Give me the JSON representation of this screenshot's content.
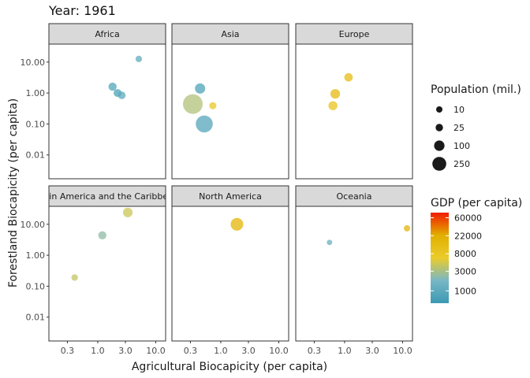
{
  "chart_data": {
    "type": "scatter",
    "title": "Year: 1961",
    "xlabel": "Agricultural Biocapicity (per capita)",
    "ylabel": "Forestland Biocapicity (per capita)",
    "x_scale": "log10",
    "y_scale": "log10",
    "xlim": [
      0.144,
      14.8
    ],
    "ylim": [
      0.0017,
      38
    ],
    "x_ticks": [
      "0.3",
      "1.0",
      "3.0",
      "10.0"
    ],
    "x_tick_values": [
      0.3,
      1,
      3,
      10
    ],
    "y_ticks": [
      "10.00",
      "1.00",
      "0.10",
      "0.01"
    ],
    "y_tick_values": [
      10,
      1,
      0.1,
      0.01
    ],
    "grid": false,
    "facets": [
      {
        "name": "Africa",
        "points": [
          {
            "x": 5.1,
            "y": 12.6,
            "pop": 12,
            "gdp": 1100
          },
          {
            "x": 1.8,
            "y": 1.6,
            "pop": 40,
            "gdp": 800
          },
          {
            "x": 2.2,
            "y": 1.0,
            "pop": 35,
            "gdp": 700
          },
          {
            "x": 2.6,
            "y": 0.84,
            "pop": 28,
            "gdp": 1000
          }
        ]
      },
      {
        "name": "Asia",
        "points": [
          {
            "x": 0.44,
            "y": 1.4,
            "pop": 95,
            "gdp": 750
          },
          {
            "x": 0.33,
            "y": 0.44,
            "pop": 650,
            "gdp": 3300
          },
          {
            "x": 0.73,
            "y": 0.39,
            "pop": 20,
            "gdp": 8000
          },
          {
            "x": 0.52,
            "y": 0.1,
            "pop": 440,
            "gdp": 850
          }
        ]
      },
      {
        "name": "Europe",
        "points": [
          {
            "x": 1.17,
            "y": 3.2,
            "pop": 45,
            "gdp": 13000
          },
          {
            "x": 0.69,
            "y": 0.94,
            "pop": 75,
            "gdp": 14000
          },
          {
            "x": 0.63,
            "y": 0.39,
            "pop": 60,
            "gdp": 9000
          }
        ]
      },
      {
        "name": "Latin America and the Caribbean",
        "points": [
          {
            "x": 3.3,
            "y": 24,
            "pop": 75,
            "gdp": 4500
          },
          {
            "x": 1.2,
            "y": 4.4,
            "pop": 38,
            "gdp": 2300
          },
          {
            "x": 0.4,
            "y": 0.19,
            "pop": 12,
            "gdp": 4000
          }
        ]
      },
      {
        "name": "North America",
        "points": [
          {
            "x": 1.9,
            "y": 10,
            "pop": 190,
            "gdp": 18000
          }
        ]
      },
      {
        "name": "Oceania",
        "points": [
          {
            "x": 11.9,
            "y": 7.4,
            "pop": 10,
            "gdp": 17000
          },
          {
            "x": 0.55,
            "y": 2.6,
            "pop": 3,
            "gdp": 1300
          }
        ]
      }
    ],
    "size_legend": {
      "title": "Population (mil.)",
      "breaks": [
        "10",
        "25",
        "100",
        "250"
      ],
      "values": [
        10,
        25,
        100,
        250
      ]
    },
    "color_legend": {
      "title": "GDP (per capita)",
      "breaks": [
        "60000",
        "22000",
        "8000",
        "3000",
        "1000"
      ],
      "values": [
        60000,
        22000,
        8000,
        3000,
        1000
      ],
      "scale": "log10",
      "palette": [
        "#3B9AB2",
        "#78B7C5",
        "#EBCC2A",
        "#E1AF00",
        "#F21A00"
      ]
    },
    "legend_position": "right"
  }
}
